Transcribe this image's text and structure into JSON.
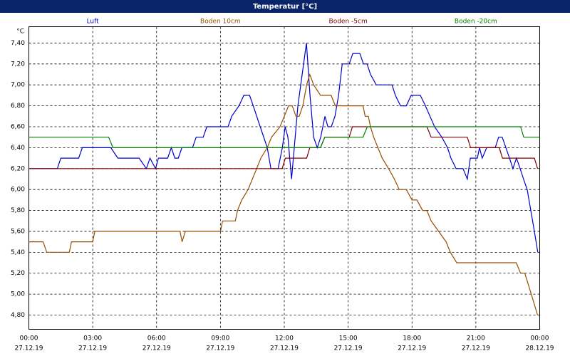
{
  "chart_data": {
    "type": "line",
    "title": "Temperatur [°C]",
    "y_label": "°C",
    "xlim": [
      0,
      24
    ],
    "ylim": [
      4.664,
      7.556
    ],
    "grid": true,
    "xticks": [
      {
        "value": 0,
        "label": "00:00"
      },
      {
        "value": 3,
        "label": "03:00"
      },
      {
        "value": 6,
        "label": "06:00"
      },
      {
        "value": 9,
        "label": "09:00"
      },
      {
        "value": 12,
        "label": "12:00"
      },
      {
        "value": 15,
        "label": "15:00"
      },
      {
        "value": 18,
        "label": "18:00"
      },
      {
        "value": 21,
        "label": "21:00"
      },
      {
        "value": 24,
        "label": "00:00"
      }
    ],
    "xtick_dates": [
      "27.12.19",
      "27.12.19",
      "27.12.19",
      "27.12.19",
      "27.12.19",
      "27.12.19",
      "27.12.19",
      "27.12.19",
      "28.12.19"
    ],
    "yticks": [
      {
        "value": 4.8,
        "label": "4,80"
      },
      {
        "value": 5.0,
        "label": "5,00"
      },
      {
        "value": 5.2,
        "label": "5,20"
      },
      {
        "value": 5.4,
        "label": "5,40"
      },
      {
        "value": 5.6,
        "label": "5,60"
      },
      {
        "value": 5.8,
        "label": "5,80"
      },
      {
        "value": 6.0,
        "label": "6,00"
      },
      {
        "value": 6.2,
        "label": "6,20"
      },
      {
        "value": 6.4,
        "label": "6,40"
      },
      {
        "value": 6.6,
        "label": "6,60"
      },
      {
        "value": 6.8,
        "label": "6,80"
      },
      {
        "value": 7.0,
        "label": "7,00"
      },
      {
        "value": 7.2,
        "label": "7,20"
      },
      {
        "value": 7.4,
        "label": "7,40"
      }
    ],
    "series": [
      {
        "name": "Luft",
        "color": "#0000cc",
        "x": [
          0,
          1.34,
          1.5,
          2.34,
          2.51,
          3.85,
          4.18,
          5.18,
          5.52,
          5.69,
          5.95,
          6.09,
          6.52,
          6.69,
          6.86,
          7.02,
          7.19,
          7.69,
          7.86,
          8.19,
          8.36,
          9.36,
          9.53,
          9.87,
          10.1,
          10.37,
          10.54,
          10.87,
          11.2,
          11.37,
          11.71,
          11.91,
          12.04,
          12.17,
          12.34,
          12.47,
          12.64,
          12.84,
          13.04,
          13.21,
          13.38,
          13.55,
          13.71,
          13.81,
          13.91,
          14.05,
          14.21,
          14.38,
          14.55,
          14.72,
          15.05,
          15.22,
          15.55,
          15.72,
          15.89,
          16.05,
          16.32,
          17.06,
          17.22,
          17.46,
          17.73,
          17.96,
          18.39,
          18.63,
          19.06,
          19.4,
          19.67,
          19.83,
          20.07,
          20.4,
          20.6,
          20.74,
          21.07,
          21.17,
          21.3,
          21.51,
          21.91,
          22.07,
          22.24,
          22.41,
          22.58,
          22.74,
          22.91,
          23.08,
          23.24,
          23.41,
          23.58,
          23.75,
          23.91
        ],
        "values": [
          6.2,
          6.2,
          6.3,
          6.3,
          6.4,
          6.4,
          6.3,
          6.3,
          6.2,
          6.3,
          6.2,
          6.3,
          6.3,
          6.4,
          6.3,
          6.3,
          6.4,
          6.4,
          6.5,
          6.5,
          6.6,
          6.6,
          6.7,
          6.8,
          6.9,
          6.9,
          6.8,
          6.6,
          6.4,
          6.2,
          6.2,
          6.4,
          6.6,
          6.5,
          6.1,
          6.4,
          6.8,
          7.1,
          7.4,
          6.9,
          6.5,
          6.4,
          6.5,
          6.6,
          6.7,
          6.6,
          6.6,
          6.7,
          6.9,
          7.2,
          7.2,
          7.3,
          7.3,
          7.2,
          7.2,
          7.1,
          7.0,
          7.0,
          6.9,
          6.8,
          6.8,
          6.9,
          6.9,
          6.8,
          6.6,
          6.5,
          6.4,
          6.3,
          6.2,
          6.2,
          6.1,
          6.3,
          6.3,
          6.4,
          6.3,
          6.4,
          6.4,
          6.5,
          6.5,
          6.4,
          6.3,
          6.2,
          6.3,
          6.2,
          6.1,
          6.0,
          5.8,
          5.6,
          5.4
        ]
      },
      {
        "name": "Boden 10cm",
        "color": "#994c00",
        "x": [
          0,
          0.67,
          0.84,
          1.9,
          2.0,
          3.0,
          3.1,
          7.1,
          7.2,
          7.35,
          9.0,
          9.1,
          9.7,
          9.8,
          10.0,
          10.3,
          10.5,
          10.7,
          10.9,
          11.2,
          11.4,
          11.8,
          12.0,
          12.2,
          12.37,
          12.55,
          12.7,
          12.87,
          13.05,
          13.2,
          13.38,
          13.7,
          14.2,
          14.4,
          15.7,
          15.8,
          15.95,
          16.05,
          16.2,
          16.4,
          16.6,
          16.9,
          17.17,
          17.4,
          17.73,
          18.0,
          18.23,
          18.5,
          18.7,
          18.9,
          19.25,
          19.6,
          19.8,
          20.1,
          22.9,
          23.1,
          23.3,
          23.6,
          23.9
        ],
        "values": [
          5.5,
          5.5,
          5.4,
          5.4,
          5.5,
          5.5,
          5.6,
          5.6,
          5.5,
          5.6,
          5.6,
          5.7,
          5.7,
          5.8,
          5.9,
          6.0,
          6.1,
          6.2,
          6.3,
          6.4,
          6.5,
          6.6,
          6.7,
          6.8,
          6.8,
          6.7,
          6.7,
          6.8,
          7.0,
          7.1,
          7.0,
          6.9,
          6.9,
          6.8,
          6.8,
          6.7,
          6.7,
          6.6,
          6.5,
          6.4,
          6.3,
          6.2,
          6.1,
          6.0,
          6.0,
          5.9,
          5.9,
          5.8,
          5.8,
          5.7,
          5.6,
          5.5,
          5.4,
          5.3,
          5.3,
          5.2,
          5.2,
          5.0,
          4.8
        ]
      },
      {
        "name": "Boden -5cm",
        "color": "#800000",
        "x": [
          0,
          11.9,
          12.05,
          13.05,
          13.2,
          13.7,
          13.9,
          15.05,
          15.2,
          18.7,
          18.9,
          20.6,
          20.75,
          22.1,
          22.25,
          23.75,
          23.9
        ],
        "values": [
          6.2,
          6.2,
          6.3,
          6.3,
          6.4,
          6.4,
          6.5,
          6.5,
          6.6,
          6.6,
          6.5,
          6.5,
          6.4,
          6.4,
          6.3,
          6.3,
          6.2
        ]
      },
      {
        "name": "Boden -20cm",
        "color": "#008000",
        "x": [
          0,
          3.75,
          3.95,
          13.7,
          13.9,
          15.7,
          15.9,
          23.1,
          23.25,
          24
        ],
        "values": [
          6.5,
          6.5,
          6.4,
          6.4,
          6.5,
          6.5,
          6.6,
          6.6,
          6.5,
          6.5
        ]
      }
    ]
  }
}
